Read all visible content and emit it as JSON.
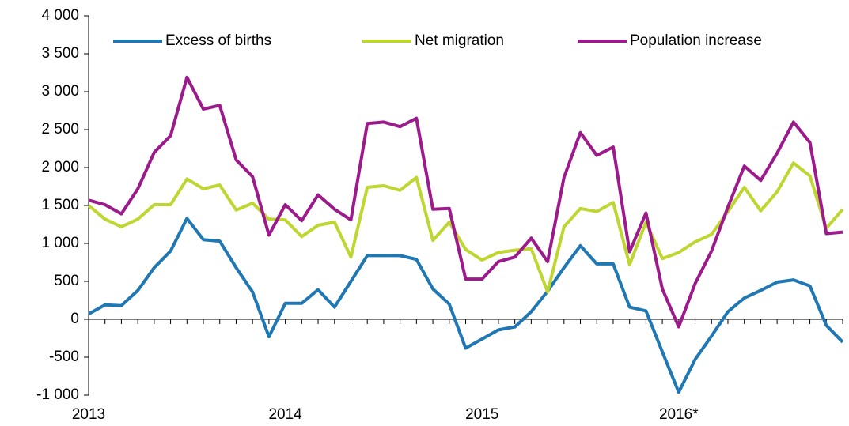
{
  "chart_data": {
    "type": "line",
    "categories": [
      "2013",
      null,
      null,
      null,
      null,
      null,
      null,
      null,
      null,
      null,
      null,
      null,
      "2014",
      null,
      null,
      null,
      null,
      null,
      null,
      null,
      null,
      null,
      null,
      null,
      "2015",
      null,
      null,
      null,
      null,
      null,
      null,
      null,
      null,
      null,
      null,
      null,
      "2016*",
      null,
      null,
      null,
      null,
      null,
      null,
      null,
      null,
      null,
      null
    ],
    "series": [
      {
        "name": "Excess of births",
        "color": "#1f78b4",
        "values": [
          70,
          190,
          180,
          380,
          680,
          900,
          1330,
          1050,
          1030,
          680,
          360,
          -230,
          210,
          210,
          390,
          160,
          500,
          840,
          840,
          840,
          790,
          400,
          200,
          -380,
          -260,
          -140,
          -100,
          100,
          370,
          680,
          970,
          730,
          730,
          160,
          110,
          -430,
          -960,
          -530,
          -220,
          100,
          280,
          380,
          490,
          520,
          440,
          -80,
          -300
        ]
      },
      {
        "name": "Net migration",
        "color": "#bfd630",
        "values": [
          1500,
          1320,
          1220,
          1320,
          1510,
          1510,
          1850,
          1720,
          1770,
          1440,
          1530,
          1320,
          1310,
          1090,
          1240,
          1280,
          820,
          1740,
          1760,
          1700,
          1870,
          1040,
          1280,
          920,
          780,
          880,
          910,
          930,
          360,
          1220,
          1460,
          1420,
          1540,
          720,
          1280,
          800,
          880,
          1020,
          1120,
          1420,
          1740,
          1430,
          1680,
          2060,
          1890,
          1200,
          1450
        ]
      },
      {
        "name": "Population increase",
        "color": "#9c1a8c",
        "values": [
          1570,
          1510,
          1390,
          1720,
          2200,
          2420,
          3190,
          2770,
          2820,
          2100,
          1880,
          1110,
          1510,
          1300,
          1640,
          1450,
          1310,
          2580,
          2600,
          2540,
          2650,
          1450,
          1460,
          530,
          530,
          760,
          820,
          1070,
          760,
          1870,
          2460,
          2160,
          2270,
          890,
          1400,
          400,
          -100,
          470,
          900,
          1480,
          2020,
          1830,
          2190,
          2600,
          2330,
          1130,
          1150
        ]
      }
    ],
    "ylim": [
      -1000,
      4000
    ],
    "yticks": [
      {
        "value": -1000,
        "label": "-1 000"
      },
      -500,
      0,
      500,
      {
        "value": 1000,
        "label": "1 000"
      },
      {
        "value": 1500,
        "label": "1 500"
      },
      {
        "value": 2000,
        "label": "2 000"
      },
      {
        "value": 2500,
        "label": "2 500"
      },
      {
        "value": 3000,
        "label": "3 000"
      },
      {
        "value": 3500,
        "label": "3 500"
      },
      {
        "value": 4000,
        "label": "4 000"
      }
    ],
    "legend": "top"
  }
}
